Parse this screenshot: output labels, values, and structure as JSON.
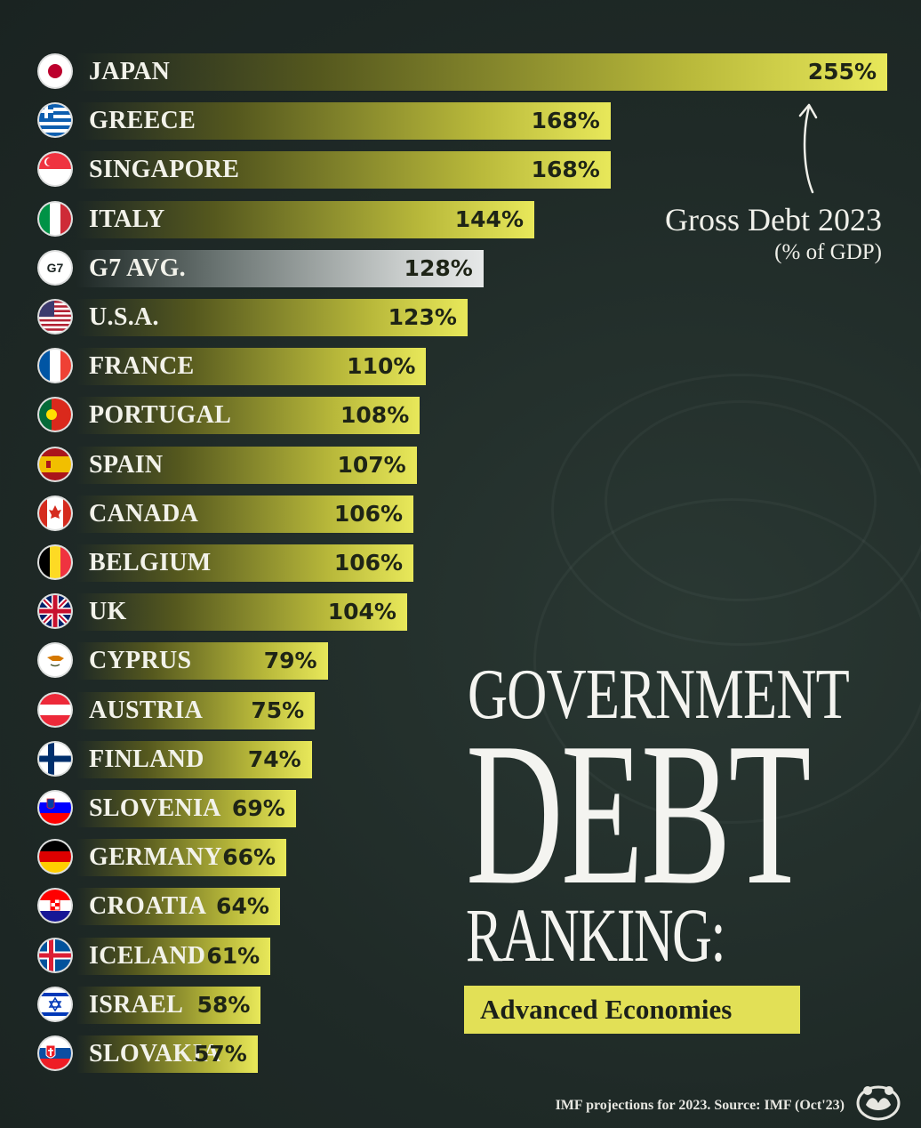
{
  "title": {
    "line1": "GOVERNMENT",
    "line2": "DEBT",
    "line3": "RANKING:",
    "subtitle": "Advanced Economies"
  },
  "annotation": {
    "line1": "Gross Debt 2023",
    "line2": "(% of GDP)"
  },
  "source": "IMF projections for 2023. Source: IMF (Oct'23)",
  "colors": {
    "background": "#1f2a27",
    "bar_end": "#e8e85a",
    "avg_bar_end": "#e6e8e8",
    "subtitle_box": "#e2e056"
  },
  "chart_data": {
    "type": "bar",
    "orientation": "horizontal",
    "unit": "%",
    "xlim": [
      0,
      255
    ],
    "categories": [
      "JAPAN",
      "GREECE",
      "SINGAPORE",
      "ITALY",
      "G7 AVG.",
      "U.S.A.",
      "FRANCE",
      "PORTUGAL",
      "SPAIN",
      "CANADA",
      "BELGIUM",
      "UK",
      "CYPRUS",
      "AUSTRIA",
      "FINLAND",
      "SLOVENIA",
      "GERMANY",
      "CROATIA",
      "ICELAND",
      "ISRAEL",
      "SLOVAKIA"
    ],
    "values": [
      255,
      168,
      168,
      144,
      128,
      123,
      110,
      108,
      107,
      106,
      106,
      104,
      79,
      75,
      74,
      69,
      66,
      64,
      61,
      58,
      57
    ],
    "labels": [
      "255%",
      "168%",
      "168%",
      "144%",
      "128%",
      "123%",
      "110%",
      "108%",
      "107%",
      "106%",
      "106%",
      "104%",
      "79%",
      "75%",
      "74%",
      "69%",
      "66%",
      "64%",
      "61%",
      "58%",
      "57%"
    ],
    "flags": [
      "japan-flag",
      "greece-flag",
      "singapore-flag",
      "italy-flag",
      "g7-badge",
      "usa-flag",
      "france-flag",
      "portugal-flag",
      "spain-flag",
      "canada-flag",
      "belgium-flag",
      "uk-flag",
      "cyprus-flag",
      "austria-flag",
      "finland-flag",
      "slovenia-flag",
      "germany-flag",
      "croatia-flag",
      "iceland-flag",
      "israel-flag",
      "slovakia-flag"
    ],
    "badge_text": "G7",
    "highlight": "G7 AVG."
  }
}
